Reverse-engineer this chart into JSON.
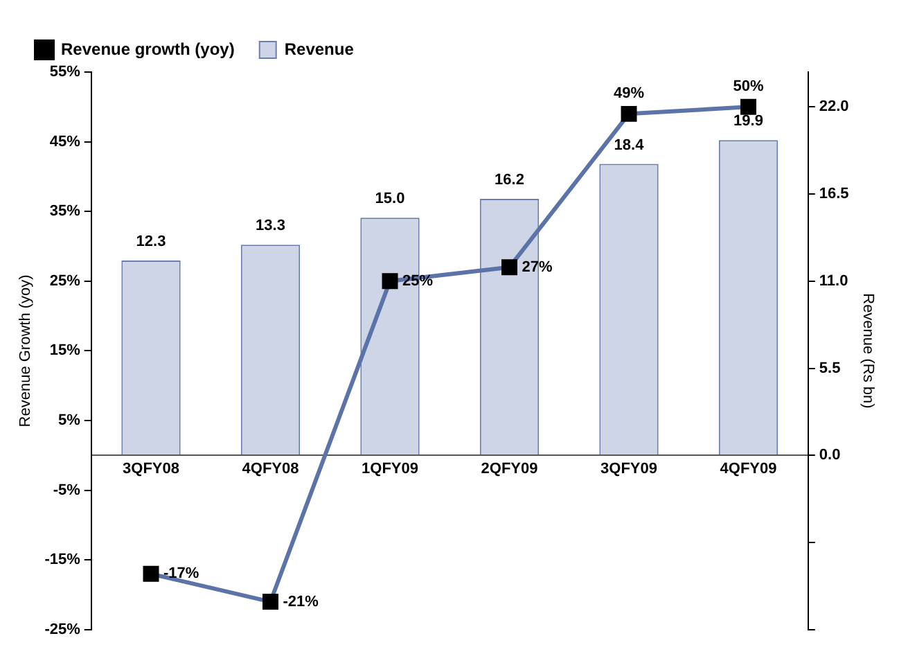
{
  "chart_data": {
    "type": "bar",
    "categories": [
      "3QFY08",
      "4QFY08",
      "1QFY09",
      "2QFY09",
      "3QFY09",
      "4QFY09"
    ],
    "series": [
      {
        "name": "Revenue",
        "type": "bar",
        "axis": "y2",
        "color": "#cdd5e6",
        "values": [
          12.3,
          13.3,
          15.0,
          16.2,
          18.4,
          19.9
        ],
        "value_labels": [
          "12.3",
          "13.3",
          "15.0",
          "16.2",
          "18.4",
          "19.9"
        ]
      },
      {
        "name": "Revenue growth (yoy)",
        "type": "line",
        "color": "#5b73a8",
        "values": [
          -17,
          -21,
          25,
          27,
          49,
          50
        ],
        "value_labels": [
          "-17%",
          "-21%",
          "25%",
          "27%",
          "49%",
          "50%"
        ]
      }
    ],
    "ylabel": "Revenue Growth (yoy)",
    "y2label": "Revenue (Rs bn)",
    "ylim": [
      -25,
      55
    ],
    "yticks": [
      {
        "value": -25,
        "label": "-25%"
      },
      {
        "value": -15,
        "label": "-15%"
      },
      {
        "value": -5,
        "label": "-5%"
      },
      {
        "value": 5,
        "label": "5%"
      },
      {
        "value": 15,
        "label": "15%"
      },
      {
        "value": 25,
        "label": "25%"
      },
      {
        "value": 35,
        "label": "35%"
      },
      {
        "value": 45,
        "label": "45%"
      },
      {
        "value": 55,
        "label": "55%"
      }
    ],
    "y2lim": [
      -11,
      24.2
    ],
    "y2ticks": [
      {
        "value": -11,
        "label": null
      },
      {
        "value": -5.5,
        "label": null
      },
      {
        "value": 0,
        "label": "0.0"
      },
      {
        "value": 5.5,
        "label": "5.5"
      },
      {
        "value": 11,
        "label": "11.0"
      },
      {
        "value": 16.5,
        "label": "16.5"
      },
      {
        "value": 22,
        "label": "22.0"
      }
    ],
    "legend": "top left",
    "marker": "square"
  }
}
